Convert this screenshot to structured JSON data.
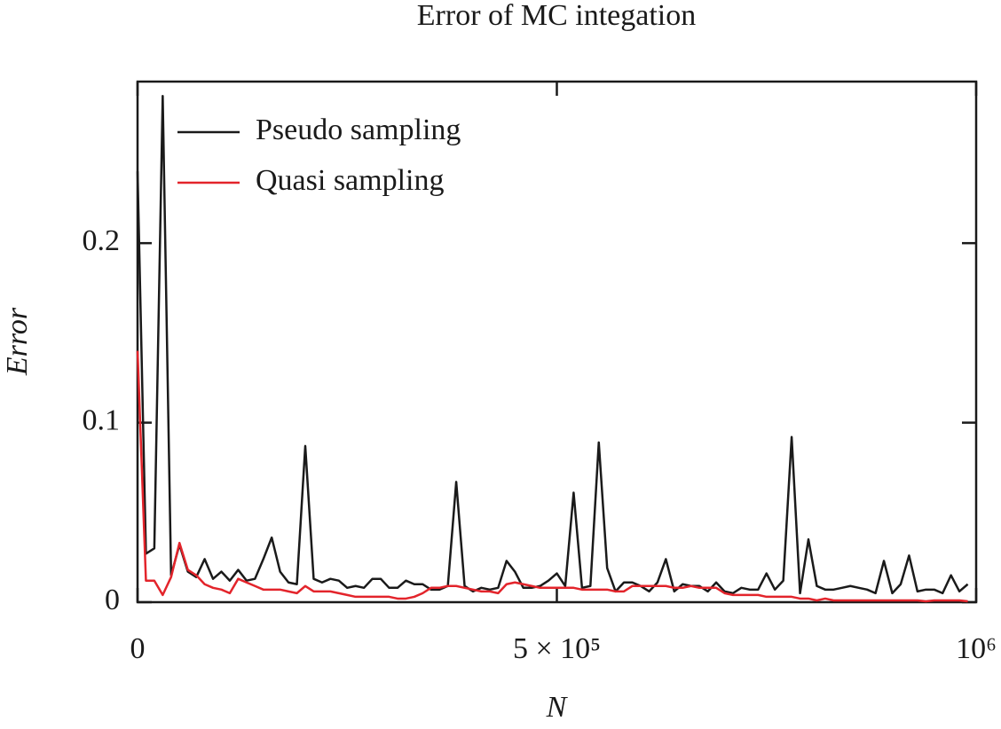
{
  "chart_data": {
    "type": "line",
    "title": "Error of MC integation",
    "xlabel": "N",
    "ylabel": "Error",
    "x": [
      0,
      10000,
      20000,
      30000,
      40000,
      50000,
      60000,
      70000,
      80000,
      90000,
      100000,
      110000,
      120000,
      130000,
      140000,
      150000,
      160000,
      170000,
      180000,
      190000,
      200000,
      210000,
      220000,
      230000,
      240000,
      250000,
      260000,
      270000,
      280000,
      290000,
      300000,
      310000,
      320000,
      330000,
      340000,
      350000,
      360000,
      370000,
      380000,
      390000,
      400000,
      410000,
      420000,
      430000,
      440000,
      450000,
      460000,
      470000,
      480000,
      490000,
      500000,
      510000,
      520000,
      530000,
      540000,
      550000,
      560000,
      570000,
      580000,
      590000,
      600000,
      610000,
      620000,
      630000,
      640000,
      650000,
      660000,
      670000,
      680000,
      690000,
      700000,
      710000,
      720000,
      730000,
      740000,
      750000,
      760000,
      770000,
      780000,
      790000,
      800000,
      810000,
      820000,
      830000,
      840000,
      850000,
      860000,
      870000,
      880000,
      890000,
      900000,
      910000,
      920000,
      930000,
      940000,
      950000,
      960000,
      970000,
      980000,
      990000
    ],
    "series": [
      {
        "name": "Pseudo sampling",
        "color": "#1a1a1a",
        "values": [
          0.24,
          0.027,
          0.03,
          0.282,
          0.015,
          0.032,
          0.017,
          0.014,
          0.024,
          0.013,
          0.017,
          0.012,
          0.018,
          0.012,
          0.013,
          0.024,
          0.036,
          0.017,
          0.011,
          0.01,
          0.087,
          0.013,
          0.011,
          0.013,
          0.012,
          0.008,
          0.009,
          0.008,
          0.013,
          0.013,
          0.008,
          0.008,
          0.012,
          0.01,
          0.01,
          0.007,
          0.007,
          0.009,
          0.067,
          0.009,
          0.006,
          0.008,
          0.007,
          0.008,
          0.023,
          0.017,
          0.008,
          0.008,
          0.009,
          0.012,
          0.016,
          0.009,
          0.061,
          0.008,
          0.009,
          0.089,
          0.019,
          0.006,
          0.011,
          0.011,
          0.009,
          0.006,
          0.011,
          0.024,
          0.006,
          0.01,
          0.009,
          0.009,
          0.006,
          0.011,
          0.006,
          0.005,
          0.008,
          0.007,
          0.007,
          0.016,
          0.007,
          0.012,
          0.092,
          0.005,
          0.035,
          0.009,
          0.007,
          0.007,
          0.008,
          0.009,
          0.008,
          0.007,
          0.005,
          0.023,
          0.005,
          0.01,
          0.026,
          0.006,
          0.007,
          0.007,
          0.005,
          0.015,
          0.006,
          0.01
        ]
      },
      {
        "name": "Quasi sampling",
        "color": "#e3242b",
        "values": [
          0.14,
          0.012,
          0.012,
          0.004,
          0.014,
          0.033,
          0.018,
          0.015,
          0.01,
          0.008,
          0.007,
          0.005,
          0.013,
          0.011,
          0.009,
          0.007,
          0.007,
          0.007,
          0.006,
          0.005,
          0.009,
          0.006,
          0.006,
          0.006,
          0.005,
          0.004,
          0.003,
          0.003,
          0.003,
          0.003,
          0.003,
          0.002,
          0.002,
          0.003,
          0.005,
          0.008,
          0.008,
          0.009,
          0.009,
          0.008,
          0.007,
          0.006,
          0.006,
          0.005,
          0.01,
          0.011,
          0.01,
          0.009,
          0.008,
          0.008,
          0.008,
          0.008,
          0.008,
          0.007,
          0.007,
          0.007,
          0.007,
          0.006,
          0.006,
          0.009,
          0.009,
          0.009,
          0.009,
          0.009,
          0.008,
          0.008,
          0.009,
          0.008,
          0.008,
          0.008,
          0.005,
          0.004,
          0.004,
          0.004,
          0.004,
          0.003,
          0.003,
          0.003,
          0.003,
          0.002,
          0.002,
          0.001,
          0.002,
          0.001,
          0.001,
          0.001,
          0.001,
          0.001,
          0.001,
          0.001,
          0.001,
          0.001,
          0.001,
          0.001,
          0.0005,
          0.001,
          0.001,
          0.001,
          0.001,
          0.0005
        ]
      }
    ],
    "xlim": [
      0,
      1000000
    ],
    "ylim": [
      0,
      0.29
    ],
    "xticks": [
      0,
      {
        "value": 500000,
        "label": "5 × 10⁵"
      },
      {
        "value": 1000000,
        "label": "10⁶"
      }
    ],
    "yticks": [
      0,
      0.1,
      0.2
    ],
    "grid": false,
    "legend": "upper left"
  }
}
